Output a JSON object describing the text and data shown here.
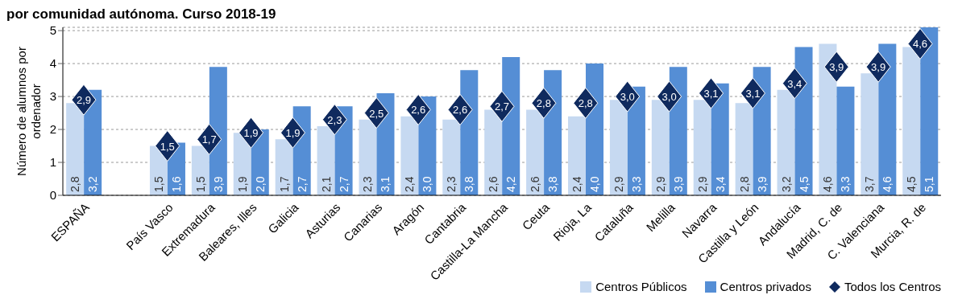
{
  "chart_data": {
    "type": "bar",
    "title": "por comunidad autónoma. Curso 2018-19",
    "ylabel": "Número de alumnos por ordenador",
    "categories": [
      "ESPAÑA",
      null,
      "País Vasco",
      "Extremadura",
      "Baleares, Illes",
      "Galicia",
      "Asturias",
      "Canarias",
      "Aragón",
      "Cantabria",
      "Castilla-La Mancha",
      "Ceuta",
      "Rioja, La",
      "Cataluña",
      "Melilla",
      "Navarra",
      "Castilla y León",
      "Andalucía",
      "Madrid, C. de",
      "C. Valenciana",
      "Murcia, R. de"
    ],
    "series": [
      {
        "name": "Centros Públicos",
        "color": "#c6d9f1",
        "values": [
          2.8,
          null,
          1.5,
          1.5,
          1.9,
          1.7,
          2.1,
          2.3,
          2.4,
          2.3,
          2.6,
          2.6,
          2.4,
          2.9,
          2.9,
          2.9,
          2.8,
          3.2,
          4.6,
          3.7,
          4.5
        ],
        "value_labels": [
          "2,8",
          null,
          "1,5",
          "1,5",
          "1,9",
          "1,7",
          "2,1",
          "2,3",
          "2,4",
          "2,3",
          "2,6",
          "2,6",
          "2,4",
          "2,9",
          "2,9",
          "2,9",
          "2,8",
          "3,2",
          "4,6",
          "3,7",
          "4,5"
        ]
      },
      {
        "name": "Centros privados",
        "color": "#558ed5",
        "values": [
          3.2,
          null,
          1.6,
          3.9,
          2.0,
          2.7,
          2.7,
          3.1,
          3.0,
          3.8,
          4.2,
          3.8,
          4.0,
          3.3,
          3.9,
          3.4,
          3.9,
          4.5,
          3.3,
          4.6,
          5.1
        ],
        "value_labels": [
          "3,2",
          null,
          "1,6",
          "3,9",
          "2,0",
          "2,7",
          "2,7",
          "3,1",
          "3,0",
          "3,8",
          "4,2",
          "3,8",
          "4,0",
          "3,3",
          "3,9",
          "3,4",
          "3,9",
          "4,5",
          "3,3",
          "4,6",
          "5,1"
        ]
      },
      {
        "name": "Todos los Centros",
        "type": "scatter",
        "color": "#0f2a5e",
        "marker": "diamond",
        "values": [
          2.9,
          null,
          1.5,
          1.7,
          1.9,
          1.9,
          2.3,
          2.5,
          2.6,
          2.6,
          2.7,
          2.8,
          2.8,
          3.0,
          3.0,
          3.1,
          3.1,
          3.4,
          3.9,
          3.9,
          4.6
        ],
        "value_labels": [
          "2,9",
          null,
          "1,5",
          "1,7",
          "1,9",
          "1,9",
          "2,3",
          "2,5",
          "2,6",
          "2,6",
          "2,7",
          "2,8",
          "2,8",
          "3,0",
          "3,0",
          "3,1",
          "3,1",
          "3,4",
          "3,9",
          "3,9",
          "4,6"
        ]
      }
    ],
    "ylim": [
      0,
      5.1
    ],
    "yticks": [
      0,
      1,
      2,
      3,
      4,
      5
    ],
    "grid": "y",
    "legend": "bottom right"
  }
}
